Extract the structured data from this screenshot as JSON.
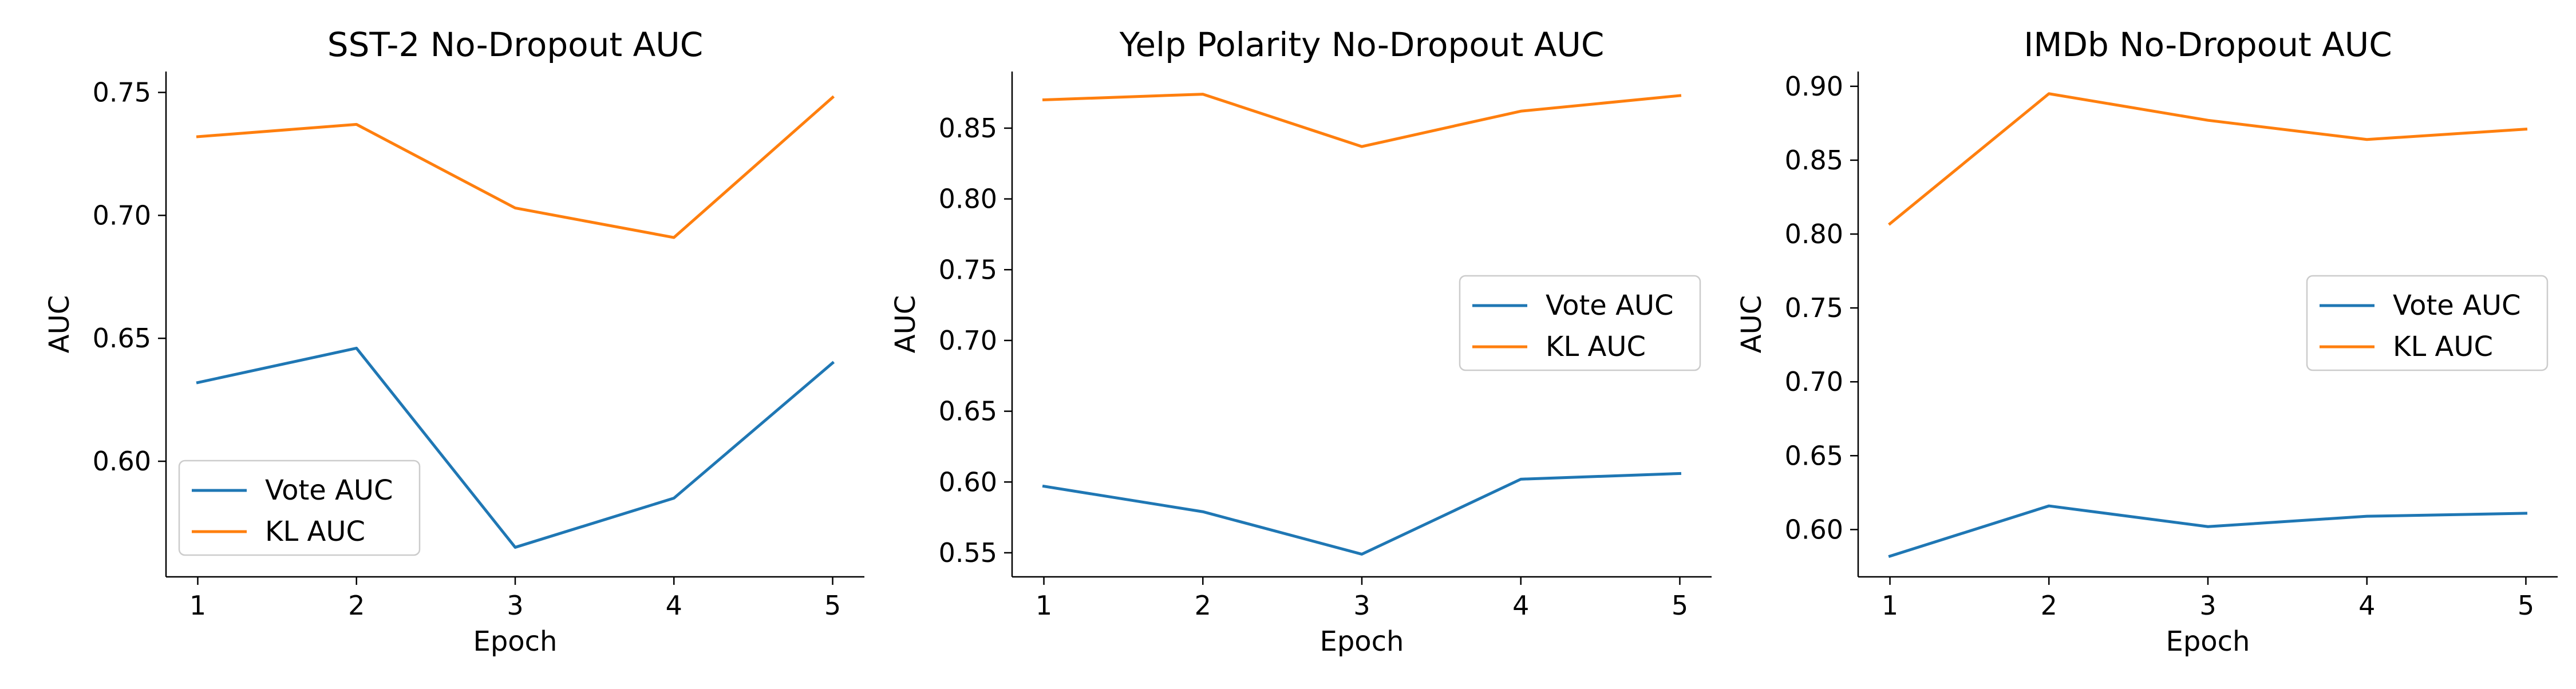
{
  "chart_data": [
    {
      "type": "line",
      "title": "SST-2 No-Dropout AUC",
      "xlabel": "Epoch",
      "ylabel": "AUC",
      "x": [
        1,
        2,
        3,
        4,
        5
      ],
      "xticks": [
        "1",
        "2",
        "3",
        "4",
        "5"
      ],
      "xlim": [
        0.8,
        5.2
      ],
      "ylim": [
        0.553,
        0.7585
      ],
      "yticks": [
        0.6,
        0.65,
        0.7,
        0.75
      ],
      "ytick_labels": [
        "0.60",
        "0.65",
        "0.70",
        "0.75"
      ],
      "grid": false,
      "legend_position": "lower-left",
      "series": [
        {
          "name": "Vote AUC",
          "color": "#1f77b4",
          "values": [
            0.632,
            0.646,
            0.565,
            0.585,
            0.64
          ]
        },
        {
          "name": "KL AUC",
          "color": "#ff7f0e",
          "values": [
            0.732,
            0.737,
            0.703,
            0.691,
            0.748
          ]
        }
      ]
    },
    {
      "type": "line",
      "title": "Yelp Polarity No-Dropout AUC",
      "xlabel": "Epoch",
      "ylabel": "AUC",
      "x": [
        1,
        2,
        3,
        4,
        5
      ],
      "xticks": [
        "1",
        "2",
        "3",
        "4",
        "5"
      ],
      "xlim": [
        0.8,
        5.2
      ],
      "ylim": [
        0.533,
        0.89
      ],
      "yticks": [
        0.55,
        0.6,
        0.65,
        0.7,
        0.75,
        0.8,
        0.85
      ],
      "ytick_labels": [
        "0.55",
        "0.60",
        "0.65",
        "0.70",
        "0.75",
        "0.80",
        "0.85"
      ],
      "grid": false,
      "legend_position": "center-right",
      "series": [
        {
          "name": "Vote AUC",
          "color": "#1f77b4",
          "values": [
            0.597,
            0.579,
            0.549,
            0.602,
            0.606
          ]
        },
        {
          "name": "KL AUC",
          "color": "#ff7f0e",
          "values": [
            0.87,
            0.874,
            0.837,
            0.862,
            0.873
          ]
        }
      ]
    },
    {
      "type": "line",
      "title": "IMDb No-Dropout AUC",
      "xlabel": "Epoch",
      "ylabel": "AUC",
      "x": [
        1,
        2,
        3,
        4,
        5
      ],
      "xticks": [
        "1",
        "2",
        "3",
        "4",
        "5"
      ],
      "xlim": [
        0.8,
        5.2
      ],
      "ylim": [
        0.568,
        0.91
      ],
      "yticks": [
        0.6,
        0.65,
        0.7,
        0.75,
        0.8,
        0.85,
        0.9
      ],
      "ytick_labels": [
        "0.60",
        "0.65",
        "0.70",
        "0.75",
        "0.80",
        "0.85",
        "0.90"
      ],
      "grid": false,
      "legend_position": "center-right",
      "series": [
        {
          "name": "Vote AUC",
          "color": "#1f77b4",
          "values": [
            0.582,
            0.616,
            0.602,
            0.609,
            0.611
          ]
        },
        {
          "name": "KL AUC",
          "color": "#ff7f0e",
          "values": [
            0.807,
            0.895,
            0.877,
            0.864,
            0.871
          ]
        }
      ]
    }
  ]
}
